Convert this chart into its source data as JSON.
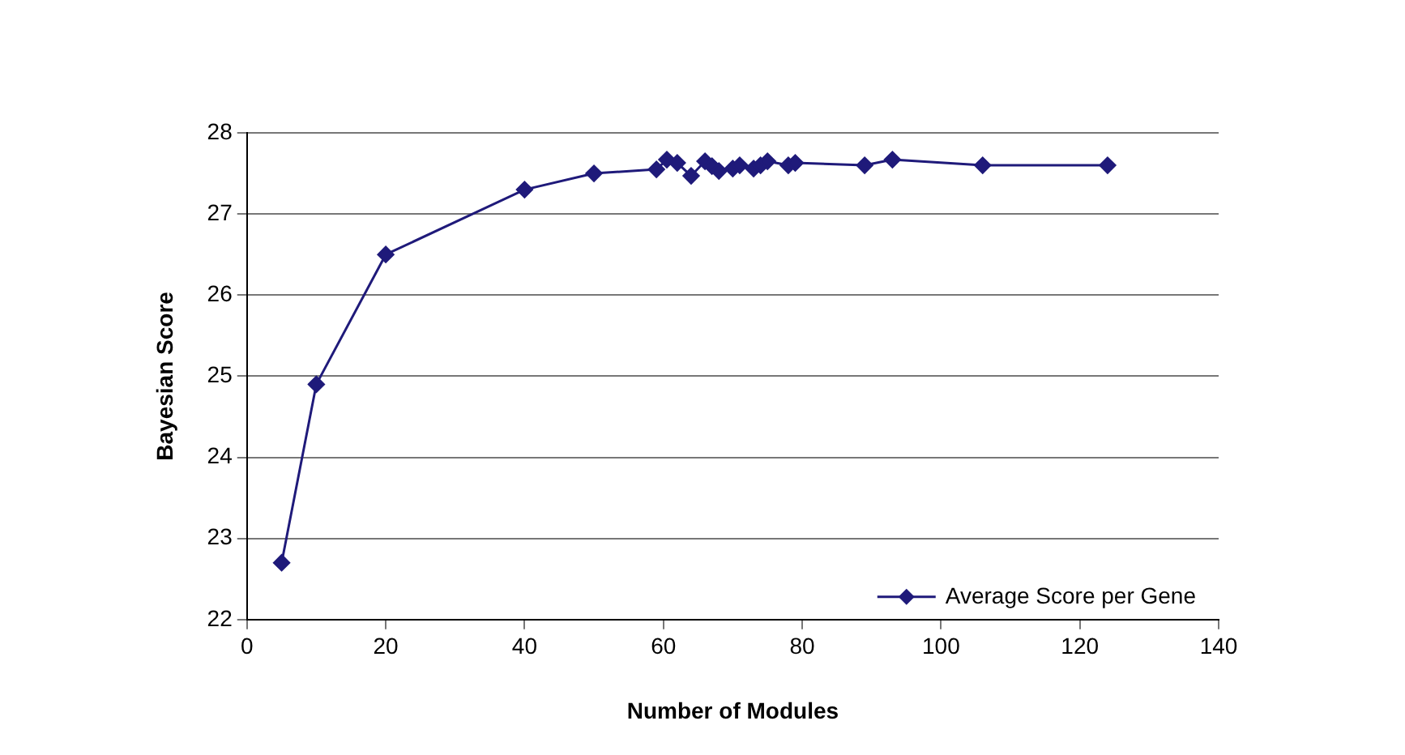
{
  "chart_data": {
    "type": "line",
    "xlabel": "Number of Modules",
    "ylabel": "Bayesian Score",
    "x": [
      5,
      10,
      20,
      40,
      50,
      59,
      60.5,
      62,
      64,
      66,
      67,
      68,
      70,
      71,
      73,
      74,
      75,
      78,
      79,
      89,
      93,
      106,
      124
    ],
    "series": [
      {
        "name": "Average Score per Gene",
        "color": "#1f1a7a",
        "values": [
          22.7,
          24.9,
          26.5,
          27.3,
          27.5,
          27.55,
          27.67,
          27.63,
          27.47,
          27.65,
          27.59,
          27.53,
          27.56,
          27.6,
          27.56,
          27.6,
          27.65,
          27.6,
          27.63,
          27.6,
          27.67,
          27.6,
          27.6
        ]
      }
    ],
    "xlim": [
      0,
      140
    ],
    "xticks": [
      0,
      20,
      40,
      60,
      80,
      100,
      120,
      140
    ],
    "ylim": [
      22,
      28
    ],
    "yticks": [
      22,
      23,
      24,
      25,
      26,
      27,
      28
    ],
    "grid": "y",
    "legend": "bottom right",
    "marker": "diamond",
    "line_style": "solid"
  }
}
